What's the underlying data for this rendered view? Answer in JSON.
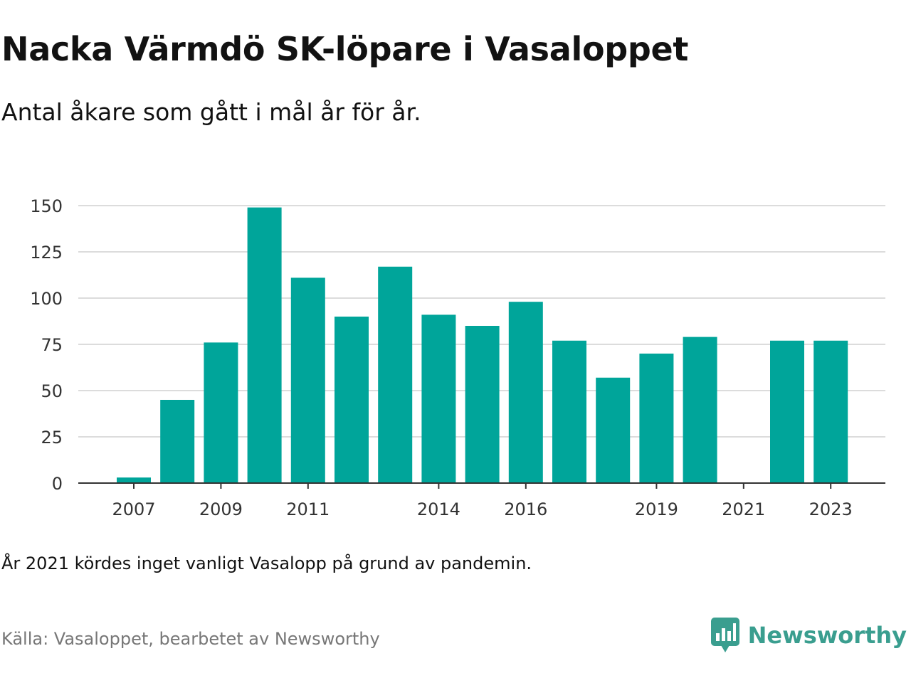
{
  "title": "Nacka Värmdö SK-löpare i Vasaloppet",
  "subtitle": "Antal åkare som gått i mål år för år.",
  "note": "År 2021 kördes inget vanligt Vasalopp på grund av pandemin.",
  "source": "Källa: Vasaloppet, bearbetet av Newsworthy",
  "brand": {
    "name": "Newsworthy",
    "icon": "newsworthy-logo-icon",
    "color": "#3a9e8f"
  },
  "chart_data": {
    "type": "bar",
    "title": "Nacka Värmdö SK-löpare i Vasaloppet",
    "subtitle": "Antal åkare som gått i mål år för år.",
    "xlabel": "",
    "ylabel": "",
    "bar_color": "#00a59a",
    "grid": true,
    "ylim": [
      0,
      150
    ],
    "yticks": [
      0,
      25,
      50,
      75,
      100,
      125,
      150
    ],
    "categories": [
      "2007",
      "2008",
      "2009",
      "2010",
      "2011",
      "2012",
      "2013",
      "2014",
      "2015",
      "2016",
      "2017",
      "2018",
      "2019",
      "2020",
      "2021",
      "2022",
      "2023"
    ],
    "xtick_labels": [
      "2007",
      "2009",
      "2011",
      "2014",
      "2016",
      "2019",
      "2021",
      "2023"
    ],
    "values": [
      3,
      45,
      76,
      149,
      111,
      90,
      117,
      91,
      85,
      98,
      77,
      57,
      70,
      79,
      0,
      77,
      77
    ]
  }
}
